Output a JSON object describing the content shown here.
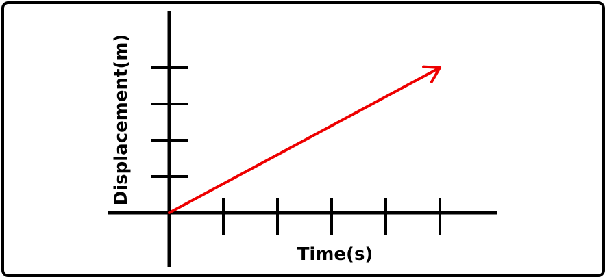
{
  "chart_data": {
    "type": "line",
    "title": "",
    "xlabel": "Time(s)",
    "ylabel": "Displacement(m)",
    "x_ticks": 5,
    "y_ticks": 4,
    "grid": false,
    "legend": "none",
    "tick_labels": false,
    "series": [
      {
        "x": [
          0,
          5
        ],
        "y": [
          0,
          4
        ],
        "color": "#ee0000",
        "arrow": true
      }
    ]
  }
}
